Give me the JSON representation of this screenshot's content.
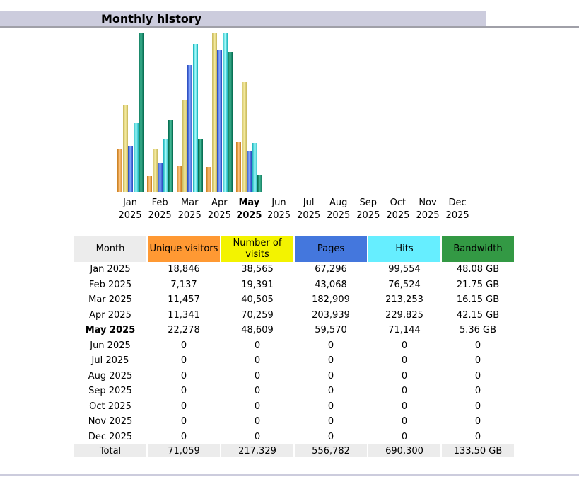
{
  "title": "Monthly history",
  "colors": {
    "visitors": "#ff9933",
    "visits": "#f3f300",
    "pages": "#4477dd",
    "hits": "#66eeff",
    "bandwidth": "#339944",
    "month": "#ececec"
  },
  "headers": {
    "month": "Month",
    "visitors": "Unique visitors",
    "visits": "Number of visits",
    "pages": "Pages",
    "hits": "Hits",
    "bandwidth": "Bandwidth"
  },
  "chart_labels": [
    [
      "Jan",
      "2025"
    ],
    [
      "Feb",
      "2025"
    ],
    [
      "Mar",
      "2025"
    ],
    [
      "Apr",
      "2025"
    ],
    [
      "May",
      "2025"
    ],
    [
      "Jun",
      "2025"
    ],
    [
      "Jul",
      "2025"
    ],
    [
      "Aug",
      "2025"
    ],
    [
      "Sep",
      "2025"
    ],
    [
      "Oct",
      "2025"
    ],
    [
      "Nov",
      "2025"
    ],
    [
      "Dec",
      "2025"
    ]
  ],
  "current_month_index": 4,
  "rows": [
    [
      "Jan 2025",
      "18,846",
      "38,565",
      "67,296",
      "99,554",
      "48.08 GB"
    ],
    [
      "Feb 2025",
      "7,137",
      "19,391",
      "43,068",
      "76,524",
      "21.75 GB"
    ],
    [
      "Mar 2025",
      "11,457",
      "40,505",
      "182,909",
      "213,253",
      "16.15 GB"
    ],
    [
      "Apr 2025",
      "11,341",
      "70,259",
      "203,939",
      "229,825",
      "42.15 GB"
    ],
    [
      "May 2025",
      "22,278",
      "48,609",
      "59,570",
      "71,144",
      "5.36 GB"
    ],
    [
      "Jun 2025",
      "0",
      "0",
      "0",
      "0",
      "0"
    ],
    [
      "Jul 2025",
      "0",
      "0",
      "0",
      "0",
      "0"
    ],
    [
      "Aug 2025",
      "0",
      "0",
      "0",
      "0",
      "0"
    ],
    [
      "Sep 2025",
      "0",
      "0",
      "0",
      "0",
      "0"
    ],
    [
      "Oct 2025",
      "0",
      "0",
      "0",
      "0",
      "0"
    ],
    [
      "Nov 2025",
      "0",
      "0",
      "0",
      "0",
      "0"
    ],
    [
      "Dec 2025",
      "0",
      "0",
      "0",
      "0",
      "0"
    ]
  ],
  "total": [
    "Total",
    "71,059",
    "217,329",
    "556,782",
    "690,300",
    "133.50 GB"
  ],
  "chart_data": {
    "type": "bar",
    "categories": [
      "Jan 2025",
      "Feb 2025",
      "Mar 2025",
      "Apr 2025",
      "May 2025",
      "Jun 2025",
      "Jul 2025",
      "Aug 2025",
      "Sep 2025",
      "Oct 2025",
      "Nov 2025",
      "Dec 2025"
    ],
    "series": [
      {
        "name": "Unique visitors",
        "values": [
          18846,
          7137,
          11457,
          11341,
          22278,
          0,
          0,
          0,
          0,
          0,
          0,
          0
        ]
      },
      {
        "name": "Number of visits",
        "values": [
          38565,
          19391,
          40505,
          70259,
          48609,
          0,
          0,
          0,
          0,
          0,
          0,
          0
        ]
      },
      {
        "name": "Pages",
        "values": [
          67296,
          43068,
          182909,
          203939,
          59570,
          0,
          0,
          0,
          0,
          0,
          0,
          0
        ]
      },
      {
        "name": "Hits",
        "values": [
          99554,
          76524,
          213253,
          229825,
          71144,
          0,
          0,
          0,
          0,
          0,
          0,
          0
        ]
      },
      {
        "name": "Bandwidth",
        "values": [
          48.08,
          21.75,
          16.15,
          42.15,
          5.36,
          0,
          0,
          0,
          0,
          0,
          0,
          0
        ]
      }
    ]
  }
}
